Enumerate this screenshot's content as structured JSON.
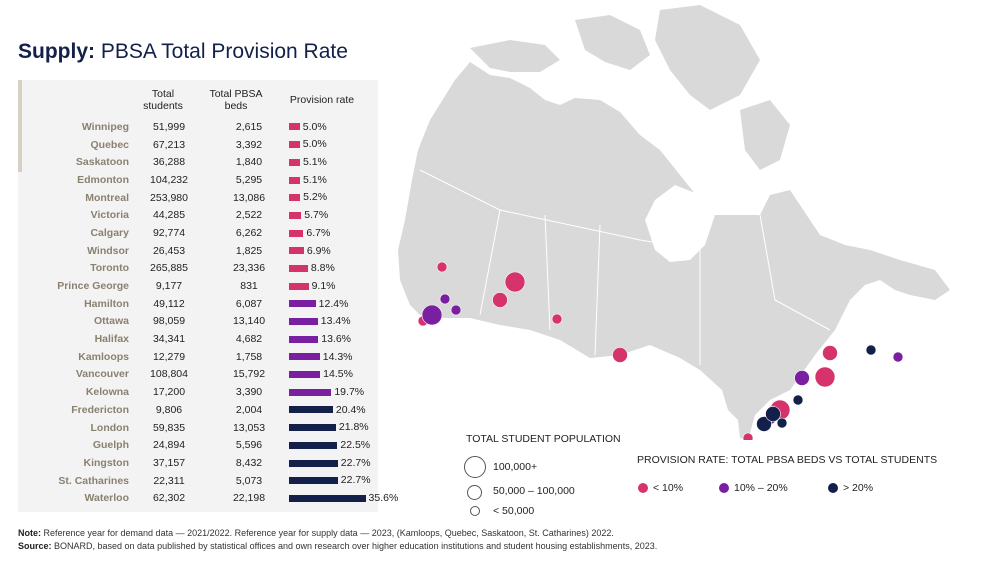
{
  "title": {
    "bold": "Supply:",
    "rest": " PBSA Total Provision Rate"
  },
  "table": {
    "headers": {
      "students": "Total students",
      "beds": "Total PBSA beds",
      "rate": "Provision rate"
    },
    "rows": [
      {
        "city": "Winnipeg",
        "students": "51,999",
        "beds": "2,615",
        "rate": "5.0%",
        "value": 5.0
      },
      {
        "city": "Quebec",
        "students": "67,213",
        "beds": "3,392",
        "rate": "5.0%",
        "value": 5.0
      },
      {
        "city": "Saskatoon",
        "students": "36,288",
        "beds": "1,840",
        "rate": "5.1%",
        "value": 5.1
      },
      {
        "city": "Edmonton",
        "students": "104,232",
        "beds": "5,295",
        "rate": "5.1%",
        "value": 5.1
      },
      {
        "city": "Montreal",
        "students": "253,980",
        "beds": "13,086",
        "rate": "5.2%",
        "value": 5.2
      },
      {
        "city": "Victoria",
        "students": "44,285",
        "beds": "2,522",
        "rate": "5.7%",
        "value": 5.7
      },
      {
        "city": "Calgary",
        "students": "92,774",
        "beds": "6,262",
        "rate": "6.7%",
        "value": 6.7
      },
      {
        "city": "Windsor",
        "students": "26,453",
        "beds": "1,825",
        "rate": "6.9%",
        "value": 6.9
      },
      {
        "city": "Toronto",
        "students": "265,885",
        "beds": "23,336",
        "rate": "8.8%",
        "value": 8.8
      },
      {
        "city": "Prince George",
        "students": "9,177",
        "beds": "831",
        "rate": "9.1%",
        "value": 9.1
      },
      {
        "city": "Hamilton",
        "students": "49,112",
        "beds": "6,087",
        "rate": "12.4%",
        "value": 12.4
      },
      {
        "city": "Ottawa",
        "students": "98,059",
        "beds": "13,140",
        "rate": "13.4%",
        "value": 13.4
      },
      {
        "city": "Halifax",
        "students": "34,341",
        "beds": "4,682",
        "rate": "13.6%",
        "value": 13.6
      },
      {
        "city": "Kamloops",
        "students": "12,279",
        "beds": "1,758",
        "rate": "14.3%",
        "value": 14.3
      },
      {
        "city": "Vancouver",
        "students": "108,804",
        "beds": "15,792",
        "rate": "14.5%",
        "value": 14.5
      },
      {
        "city": "Kelowna",
        "students": "17,200",
        "beds": "3,390",
        "rate": "19.7%",
        "value": 19.7
      },
      {
        "city": "Fredericton",
        "students": "9,806",
        "beds": "2,004",
        "rate": "20.4%",
        "value": 20.4
      },
      {
        "city": "London",
        "students": "59,835",
        "beds": "13,053",
        "rate": "21.8%",
        "value": 21.8
      },
      {
        "city": "Guelph",
        "students": "24,894",
        "beds": "5,596",
        "rate": "22.5%",
        "value": 22.5
      },
      {
        "city": "Kingston",
        "students": "37,157",
        "beds": "8,432",
        "rate": "22.7%",
        "value": 22.7
      },
      {
        "city": "St. Catharines",
        "students": "22,311",
        "beds": "5,073",
        "rate": "22.7%",
        "value": 22.7
      },
      {
        "city": "Waterloo",
        "students": "62,302",
        "beds": "22,198",
        "rate": "35.6%",
        "value": 35.6
      }
    ]
  },
  "colors": {
    "low": "#d6336c",
    "mid": "#7b1fa2",
    "high": "#12204a",
    "map": "#d9d9d9"
  },
  "legend_population": {
    "title": "TOTAL STUDENT POPULATION",
    "items": [
      "100,000+",
      "50,000 – 100,000",
      "< 50,000"
    ]
  },
  "legend_rate": {
    "title": "PROVISION RATE: TOTAL PBSA BEDS VS TOTAL STUDENTS",
    "items": [
      "< 10%",
      "10% – 20%",
      "> 20%"
    ]
  },
  "notes": {
    "note_label": "Note:",
    "note_text": " Reference year for demand data — 2021/2022. Reference year for supply data — 2023, (Kamloops, Quebec, Saskatoon, St. Catharines) 2022.",
    "source_label": "Source:",
    "source_text": " BONARD, based on data published by statistical offices and own research over higher education institutions and student housing establishments, 2023."
  }
}
